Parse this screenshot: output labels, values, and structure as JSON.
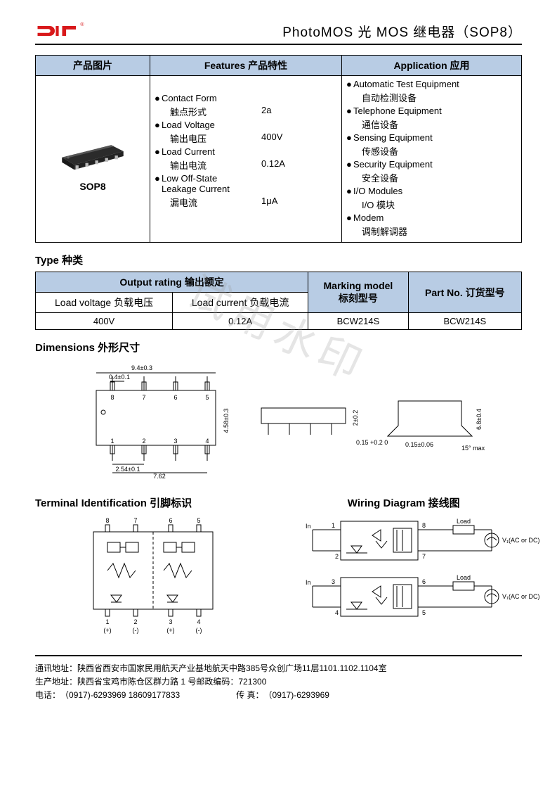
{
  "header": {
    "title": "PhotoMOS 光 MOS 继电器（SOP8）",
    "logo_colors": {
      "red": "#d8181a",
      "black": "#000"
    }
  },
  "watermark": "试用水印",
  "main_table": {
    "headers": [
      "产品图片",
      "Features 产品特性",
      "Application 应用"
    ],
    "product_label": "SOP8",
    "features": [
      {
        "en": "Contact Form",
        "cn": "触点形式",
        "val": "2a"
      },
      {
        "en": "Load Voltage",
        "cn": "输出电压",
        "val": "400V"
      },
      {
        "en": " Load Current",
        "cn": "输出电流",
        "val": "0.12A"
      },
      {
        "en": "Low Off-State Leakage Current",
        "cn": "漏电流",
        "val": "1μA"
      }
    ],
    "applications": [
      {
        "en": "Automatic Test Equipment",
        "cn": "自动检测设备"
      },
      {
        "en": "Telephone Equipment",
        "cn": "通信设备"
      },
      {
        "en": "Sensing Equipment",
        "cn": "传感设备"
      },
      {
        "en": "Security Equipment",
        "cn": "安全设备"
      },
      {
        "en": "I/O Modules",
        "cn": "I/O 模块"
      },
      {
        "en": "Modem",
        "cn": "调制解调器"
      }
    ]
  },
  "type_section": {
    "title": "Type 种类",
    "headers": {
      "output_rating": "Output rating 输出额定",
      "load_voltage": "Load voltage 负载电压",
      "load_current": "Load current 负载电流",
      "marking": "Marking model\n标刻型号",
      "part_no": "Part No. 订货型号"
    },
    "row": {
      "voltage": "400V",
      "current": "0.12A",
      "marking": "BCW214S",
      "part_no": "BCW214S"
    }
  },
  "dimensions": {
    "title": "Dimensions 外形尺寸",
    "labels": {
      "w": "9.4±0.3",
      "lead_w": "0.4±0.1",
      "pitch": "2.54±0.1",
      "span": "7.62",
      "h": "4.58±0.3",
      "thk": "2±0.2",
      "foot_h": "0.15 +0.2 0",
      "total_h": "6.8±0.4",
      "foot_t": "0.15±0.06",
      "ang": "15° max"
    },
    "pins_top": [
      "8",
      "7",
      "6",
      "5"
    ],
    "pins_bot": [
      "1",
      "2",
      "3",
      "4"
    ]
  },
  "terminal": {
    "title": "Terminal Identification 引脚标识",
    "pins_top": [
      "8",
      "7",
      "6",
      "5"
    ],
    "pins_bot": [
      "1",
      "2",
      "3",
      "4"
    ],
    "polarity": [
      "(+)",
      "(-)",
      "(+)",
      "(-)"
    ]
  },
  "wiring": {
    "title": "Wiring Diagram  接线图",
    "labels": {
      "in": "In",
      "load": "Load",
      "vl": "V₁(AC or DC)"
    },
    "pins": [
      "1",
      "2",
      "3",
      "4",
      "5",
      "6",
      "7",
      "8"
    ]
  },
  "footer": {
    "addr_label": "通讯地址：",
    "addr": "陕西省西安市国家民用航天产业基地航天中路385号众创广场11层1101.1102.1104室",
    "prod_label": "生产地址：",
    "prod": " 陕西省宝鸡市陈仓区群力路 1 号邮政编码：721300",
    "tel_label": "电话：",
    "tel": "（0917)-6293969   18609177833",
    "fax_label": "传      真：",
    "fax": "（0917)-6293969"
  },
  "colors": {
    "header_bg": "#b8cce4",
    "border": "#000000",
    "chip_body": "#2b2b2b",
    "chip_top": "#555"
  }
}
